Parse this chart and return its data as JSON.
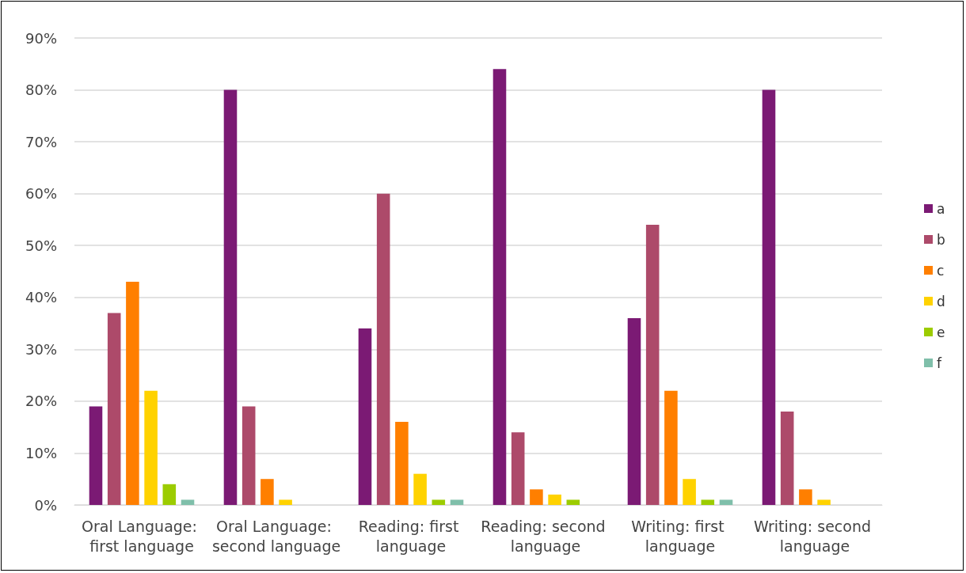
{
  "chart_data": {
    "type": "bar",
    "categories": [
      "Oral Language: first language",
      "Oral Language: second language",
      "Reading: first language",
      "Reading: second language",
      "Writing: first language",
      "Writing: second language"
    ],
    "series": [
      {
        "name": "a",
        "color": "#7b1a74",
        "values": [
          19,
          80,
          34,
          84,
          36,
          80
        ]
      },
      {
        "name": "b",
        "color": "#ad4a6a",
        "values": [
          37,
          19,
          60,
          14,
          54,
          18
        ]
      },
      {
        "name": "c",
        "color": "#ff7f00",
        "values": [
          43,
          5,
          16,
          3,
          22,
          3
        ]
      },
      {
        "name": "d",
        "color": "#ffd200",
        "values": [
          22,
          1,
          6,
          2,
          5,
          1
        ]
      },
      {
        "name": "e",
        "color": "#9ccc00",
        "values": [
          4,
          0,
          1,
          1,
          1,
          0
        ]
      },
      {
        "name": "f",
        "color": "#7fbfaa",
        "values": [
          1,
          0,
          1,
          0,
          1,
          0
        ]
      }
    ],
    "ylim": [
      0,
      90
    ],
    "yticks": [
      {
        "value": 0,
        "label": "0%"
      },
      {
        "value": 10,
        "label": "10%"
      },
      {
        "value": 20,
        "label": "20%"
      },
      {
        "value": 30,
        "label": "30%"
      },
      {
        "value": 40,
        "label": "40%"
      },
      {
        "value": 50,
        "label": "50%"
      },
      {
        "value": 60,
        "label": "60%"
      },
      {
        "value": 70,
        "label": "70%"
      },
      {
        "value": 80,
        "label": "80%"
      },
      {
        "value": 90,
        "label": "90%"
      }
    ],
    "grid": "y",
    "legend": "right"
  }
}
